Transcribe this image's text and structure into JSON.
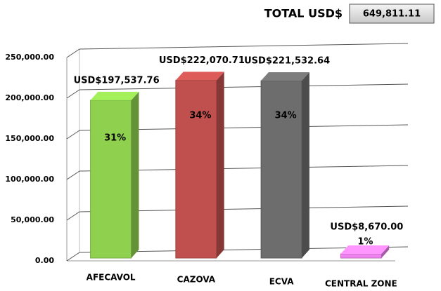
{
  "chart_data": {
    "type": "bar",
    "total_title": "TOTAL USD$",
    "total": {
      "value": 649811.11,
      "label": "649,811.11"
    },
    "categories": [
      "AFECAVOL",
      "CAZOVA",
      "ECVA",
      "CENTRAL ZONE"
    ],
    "values": [
      197537.76,
      222070.71,
      221532.64,
      8670.0
    ],
    "value_labels": [
      "USD$197,537.76",
      "USD$222,070.71",
      "USD$221,532.64",
      "USD$8,670.00"
    ],
    "percent_labels": [
      "31%",
      "34%",
      "34%",
      "1%"
    ],
    "colors": [
      "#8fd14f",
      "#c0504d",
      "#6d6d6d",
      "#ee82ee"
    ],
    "ylim": [
      0,
      250000
    ],
    "yticks": [
      {
        "value": 0,
        "label": "0.00"
      },
      {
        "value": 50000,
        "label": "50,000.00"
      },
      {
        "value": 100000,
        "label": "100,000.00"
      },
      {
        "value": 150000,
        "label": "150,000.00"
      },
      {
        "value": 200000,
        "label": "200,000.00"
      },
      {
        "value": 250000,
        "label": "250,000.00"
      }
    ],
    "grid": true
  }
}
